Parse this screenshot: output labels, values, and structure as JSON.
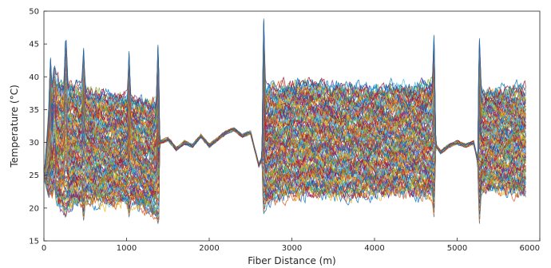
{
  "chart_data": {
    "type": "line",
    "xlabel": "Fiber Distance (m)",
    "ylabel": "Temperature (°C)",
    "xlim": [
      0,
      6000
    ],
    "ylim": [
      15,
      50
    ],
    "xticks": [
      "0",
      "1000",
      "2000",
      "3000",
      "4000",
      "5000",
      "6000"
    ],
    "yticks": [
      "15",
      "20",
      "25",
      "30",
      "35",
      "40",
      "45",
      "50"
    ],
    "grid": false,
    "legend": "none",
    "num_traces": 120,
    "fiber_end_m": 5830,
    "colors": [
      "#0072BD",
      "#D95319",
      "#EDB120",
      "#7E2F8E",
      "#77AC30",
      "#4DBEEE",
      "#A2142F"
    ],
    "baseline_profile": {
      "x": [
        0,
        60,
        100,
        130,
        200,
        260,
        400,
        500,
        600,
        700,
        800,
        900,
        1000,
        1100,
        1200,
        1300,
        1400,
        1500,
        1600,
        1700,
        1800,
        1900,
        2000,
        2100,
        2200,
        2300,
        2400,
        2500,
        2600,
        2660,
        2700,
        2800,
        3000,
        3200,
        3500,
        3800,
        4000,
        4200,
        4400,
        4600,
        4720,
        4800,
        4900,
        5000,
        5100,
        5200,
        5250,
        5300,
        5400,
        5500,
        5600,
        5700,
        5830
      ],
      "y": [
        26,
        27,
        28,
        29,
        28,
        29.5,
        30,
        30,
        29.5,
        30,
        29,
        30,
        29.5,
        30,
        30,
        29.5,
        30,
        30.5,
        29,
        30,
        29.5,
        31,
        29.5,
        30.5,
        31.5,
        32,
        31,
        31.5,
        26.5,
        28,
        29.5,
        30,
        30,
        30.5,
        30,
        30,
        30.5,
        30.5,
        30.5,
        30,
        30,
        28.5,
        29.5,
        30,
        29.5,
        30,
        27,
        29.5,
        30,
        30,
        30,
        30.5,
        30.5
      ]
    },
    "envelope_high": {
      "x": [
        0,
        60,
        130,
        260,
        500,
        1000,
        1390,
        1400,
        2640,
        2660,
        3000,
        4000,
        4720,
        4730,
        5250,
        5270,
        5830
      ],
      "y": [
        26,
        36,
        40,
        39,
        38,
        37,
        36,
        30,
        30,
        38,
        39,
        38,
        39,
        30,
        30,
        38,
        38
      ]
    },
    "envelope_low": {
      "x": [
        0,
        60,
        130,
        260,
        500,
        1000,
        1390,
        1400,
        2640,
        2660,
        3000,
        4000,
        4720,
        4730,
        5250,
        5270,
        5830
      ],
      "y": [
        26,
        23,
        22,
        20,
        21,
        21,
        19,
        30,
        30,
        21,
        22,
        22,
        22,
        30,
        30,
        23,
        22
      ]
    },
    "spikes": [
      {
        "x": 80,
        "ymax": 43,
        "ymin": 22
      },
      {
        "x": 125,
        "ymax": 42,
        "ymin": 23
      },
      {
        "x": 265,
        "ymax": 47.5,
        "ymin": 18
      },
      {
        "x": 480,
        "ymax": 44.5,
        "ymin": 18
      },
      {
        "x": 1030,
        "ymax": 44,
        "ymin": 18.5
      },
      {
        "x": 1380,
        "ymax": 45,
        "ymin": 17.5
      },
      {
        "x": 2660,
        "ymax": 49,
        "ymin": 19
      },
      {
        "x": 4720,
        "ymax": 46.5,
        "ymin": 18.5
      },
      {
        "x": 5270,
        "ymax": 46,
        "ymin": 17.5
      }
    ]
  }
}
